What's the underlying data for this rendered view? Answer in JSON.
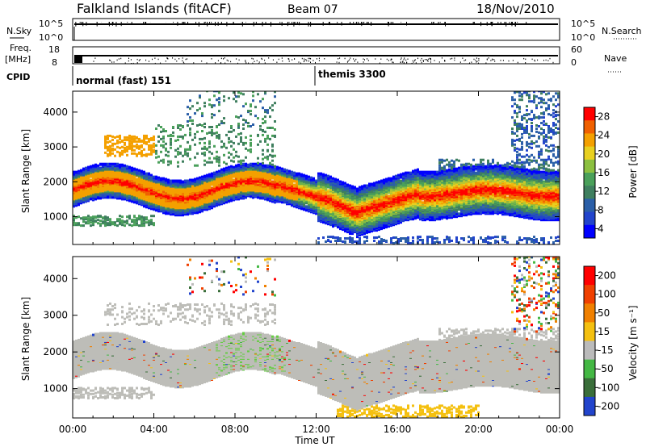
{
  "header": {
    "site": "Falkland Islands (fitACF)",
    "beam": "Beam 07",
    "date": "18/Nov/2010"
  },
  "summary": {
    "nsky_label": "N.Sky",
    "nsky_ticks": [
      "10^5",
      "10^0"
    ],
    "nsearch_label": "N.Search",
    "nsearch_ticks": [
      "10^5",
      "10^0"
    ],
    "freq_label_line1": "Freq.",
    "freq_label_line2": "[MHz]",
    "freq_ticks": [
      "18",
      "8"
    ],
    "nave_label": "Nave",
    "nave_ticks": [
      "60",
      "0"
    ],
    "cpid_label": "CPID",
    "cpid_segments": [
      {
        "label": "normal (fast) 151",
        "start_hour": 0
      },
      {
        "label": "themis 3300",
        "start_hour": 12
      }
    ]
  },
  "chart_data": [
    {
      "type": "heatmap",
      "name": "power-panel",
      "ylabel": "Slant Range [km]",
      "xlim": [
        0,
        24
      ],
      "ylim": [
        200,
        4600
      ],
      "yticks": [
        1000,
        2000,
        3000,
        4000
      ],
      "colorbar": {
        "label": "Power [dB]",
        "range": [
          0,
          32
        ],
        "ticks": [
          "28",
          "24",
          "20",
          "16",
          "12",
          "8",
          "4"
        ],
        "tick_values": [
          28,
          24,
          20,
          16,
          12,
          8,
          4
        ],
        "colors": [
          "#0000ff",
          "#2244cc",
          "#2b5fa8",
          "#3f7f5f",
          "#4aa05a",
          "#8cc040",
          "#e8d020",
          "#f4a000",
          "#f06000",
          "#ff0000"
        ]
      }
    },
    {
      "type": "heatmap",
      "name": "velocity-panel",
      "ylabel": "Slant Range [km]",
      "xlabel": "Time UT",
      "xlim": [
        0,
        24
      ],
      "ylim": [
        200,
        4600
      ],
      "yticks": [
        1000,
        2000,
        3000,
        4000
      ],
      "xticks": [
        "00:00",
        "04:00",
        "08:00",
        "12:00",
        "16:00",
        "20:00",
        "00:00"
      ],
      "colorbar": {
        "label": "Velocity [m s⁻¹]",
        "ticks": [
          "200",
          "100",
          "50",
          "15",
          "-15",
          "-50",
          "-100",
          "-200"
        ],
        "colors": [
          "#2244cc",
          "#3a6e3a",
          "#44b844",
          "#bbbbbb",
          "#f4c010",
          "#f08000",
          "#f04000",
          "#ff0000"
        ]
      }
    }
  ]
}
